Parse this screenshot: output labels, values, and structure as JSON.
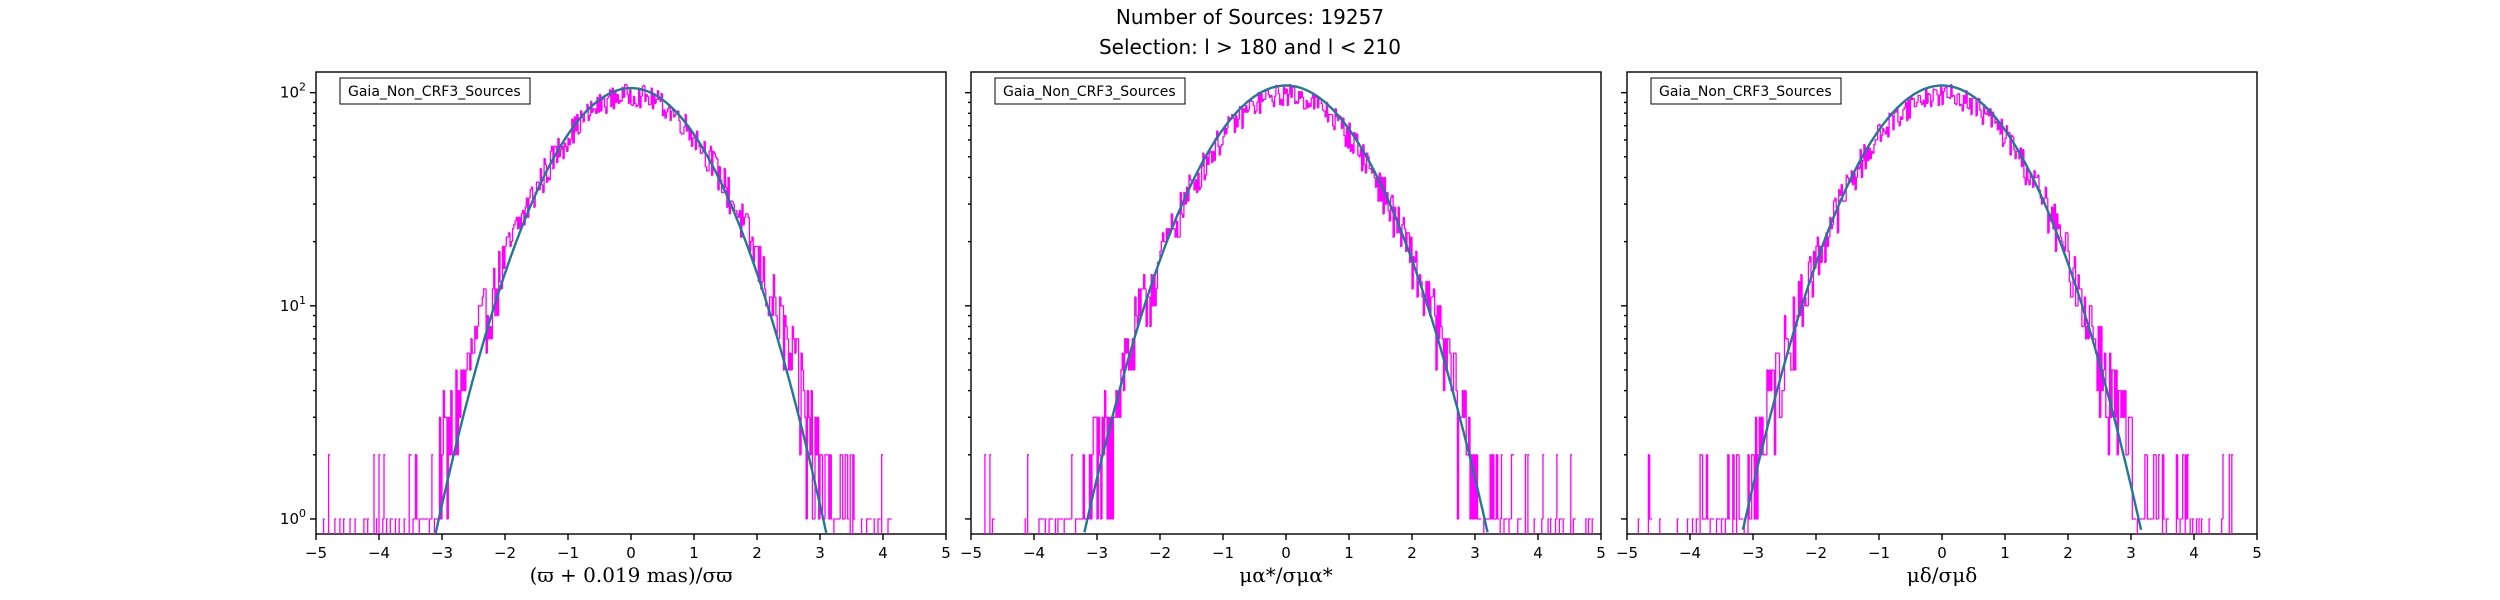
{
  "figure": {
    "title": "Number of Sources: 19257",
    "subtitle": "Selection: l > 180 and l < 210"
  },
  "colors": {
    "histogram": "#ff00ff",
    "fit": "#1f7a93",
    "axes": "#000000"
  },
  "chart_data": [
    {
      "type": "line",
      "panel": "parallax",
      "xlabel": "(ϖ + 0.019 mas)/σϖ",
      "xlim": [
        -5,
        5
      ],
      "ylim": [
        0.85,
        125
      ],
      "yscale": "log",
      "xticks": [
        -5,
        -4,
        -3,
        -2,
        -1,
        0,
        1,
        2,
        3,
        4,
        5
      ],
      "yticks": [
        {
          "value": 1,
          "base": "10",
          "exp": "0"
        },
        {
          "value": 10,
          "base": "10",
          "exp": "1"
        },
        {
          "value": 100,
          "base": "10",
          "exp": "2"
        }
      ],
      "legend": {
        "label": "Gaia_Non_CRF3_Sources",
        "position": "top-left"
      },
      "series": [
        {
          "name": "Gaia_Non_CRF3_Sources",
          "kind": "histogram",
          "color": "#ff00ff",
          "x_range": [
            -4.9,
            4.3
          ],
          "sigma": 1.06,
          "peak": 98,
          "floor_min": -4.9,
          "floor_max": 4.3
        },
        {
          "kind": "gaussian-fit",
          "color": "#1f7a93",
          "mu": 0.0,
          "sigma": 1.0,
          "amplitude": 105,
          "x_range": [
            -3.2,
            3.2
          ]
        }
      ]
    },
    {
      "type": "line",
      "panel": "proper-motion-ra",
      "xlabel": "μα*/σμα*",
      "xlim": [
        -5,
        5
      ],
      "ylim": [
        0.85,
        125
      ],
      "yscale": "log",
      "xticks": [
        -5,
        -4,
        -3,
        -2,
        -1,
        0,
        1,
        2,
        3,
        4,
        5
      ],
      "legend": {
        "label": "Gaia_Non_CRF3_Sources",
        "position": "top-left"
      },
      "series": [
        {
          "name": "Gaia_Non_CRF3_Sources",
          "kind": "histogram",
          "color": "#ff00ff",
          "x_range": [
            -4.8,
            4.9
          ],
          "sigma": 1.06,
          "peak": 98,
          "floor_min": -4.8,
          "floor_max": 4.9
        },
        {
          "kind": "gaussian-fit",
          "color": "#1f7a93",
          "mu": 0.0,
          "sigma": 1.03,
          "amplitude": 108,
          "x_range": [
            -3.3,
            3.3
          ]
        }
      ]
    },
    {
      "type": "line",
      "panel": "proper-motion-dec",
      "xlabel": "μδ/σμδ",
      "xlim": [
        -5,
        5
      ],
      "ylim": [
        0.85,
        125
      ],
      "yscale": "log",
      "xticks": [
        -5,
        -4,
        -3,
        -2,
        -1,
        0,
        1,
        2,
        3,
        4,
        5
      ],
      "legend": {
        "label": "Gaia_Non_CRF3_Sources",
        "position": "top-left"
      },
      "series": [
        {
          "name": "Gaia_Non_CRF3_Sources",
          "kind": "histogram",
          "color": "#ff00ff",
          "x_range": [
            -4.9,
            4.6
          ],
          "sigma": 1.06,
          "peak": 98,
          "floor_min": -4.9,
          "floor_max": 4.6
        },
        {
          "kind": "gaussian-fit",
          "color": "#1f7a93",
          "mu": 0.0,
          "sigma": 1.02,
          "amplitude": 108,
          "x_range": [
            -3.3,
            3.3
          ]
        }
      ]
    }
  ]
}
